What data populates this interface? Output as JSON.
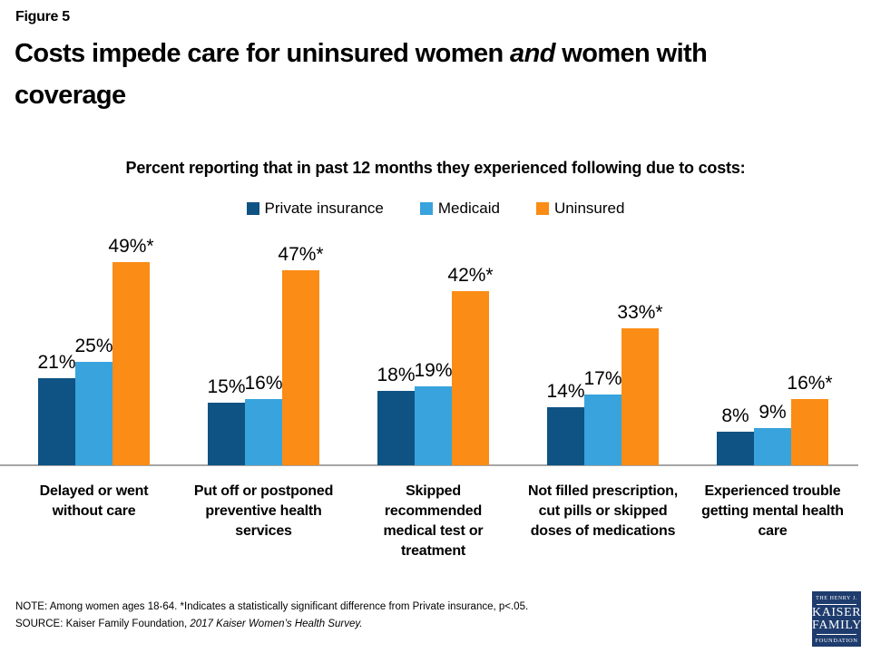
{
  "slide": {
    "figure_label": "Figure 5",
    "title_line1_pre": "Costs impede care for uninsured women ",
    "title_line1_italic": "and",
    "title_line1_post": " women with",
    "title_line2": "coverage"
  },
  "chart_data": {
    "type": "bar",
    "title": "Percent reporting that in past 12 months they experienced following due to costs:",
    "categories": [
      "Delayed or went\nwithout care",
      "Put off or postponed\npreventive health\nservices",
      "Skipped\nrecommended\nmedical test or\ntreatment",
      "Not filled prescription,\ncut pills or skipped\ndoses of medications",
      "Experienced trouble\ngetting mental health\ncare"
    ],
    "series": [
      {
        "name": "Private insurance",
        "color": "#0E5384",
        "values": [
          21,
          15,
          18,
          14,
          8
        ],
        "data_labels": [
          "21%",
          "15%",
          "18%",
          "14%",
          "8%"
        ]
      },
      {
        "name": "Medicaid",
        "color": "#38A3DC",
        "values": [
          25,
          16,
          19,
          17,
          9
        ],
        "data_labels": [
          "25%",
          "16%",
          "19%",
          "17%",
          "9%"
        ]
      },
      {
        "name": "Uninsured",
        "color": "#FB8C16",
        "values": [
          49,
          47,
          42,
          33,
          16
        ],
        "data_labels": [
          "49%*",
          "47%*",
          "42%*",
          "33%*",
          "16%*"
        ]
      }
    ],
    "ylim": [
      0,
      55
    ],
    "grid": false,
    "legend_position": "top-center",
    "axis_line_color": "#A6A6A6"
  },
  "footer": {
    "note": "NOTE: Among women ages 18-64. *Indicates a statistically significant difference from Private insurance, p<.05.",
    "source_prefix": "SOURCE: Kaiser Family Foundation, ",
    "source_italic": "2017 Kaiser Women’s Health Survey."
  },
  "logo": {
    "line1": "THE HENRY J.",
    "line2": "KAISER",
    "line3": "FAMILY",
    "line4": "FOUNDATION",
    "bg_color": "#1E3C6D"
  }
}
